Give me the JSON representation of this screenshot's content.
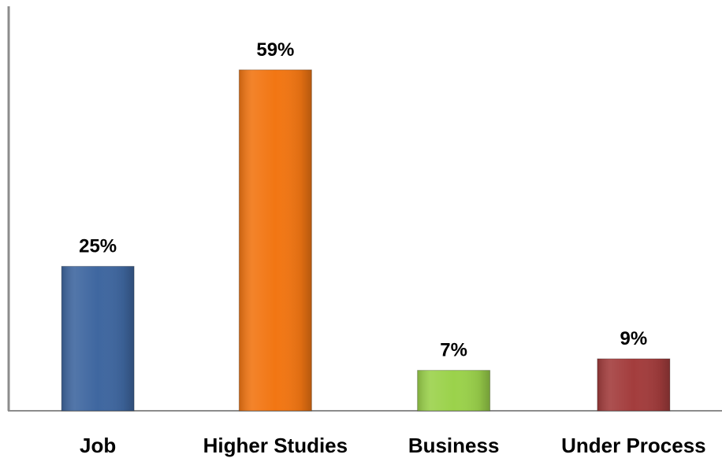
{
  "chart_data": {
    "type": "bar",
    "categories": [
      "Job",
      "Higher Studies",
      "Business",
      "Under Process"
    ],
    "values": [
      25,
      59,
      7,
      9
    ],
    "value_labels": [
      "25%",
      "59%",
      "7%",
      "9%"
    ],
    "unit": "%",
    "colors": [
      "#3f67a0",
      "#f27613",
      "#9bd24b",
      "#a33d3d"
    ],
    "title": "",
    "xlabel": "",
    "ylabel": "",
    "ylim": [
      0,
      70
    ],
    "grid": false,
    "legend": "none"
  }
}
